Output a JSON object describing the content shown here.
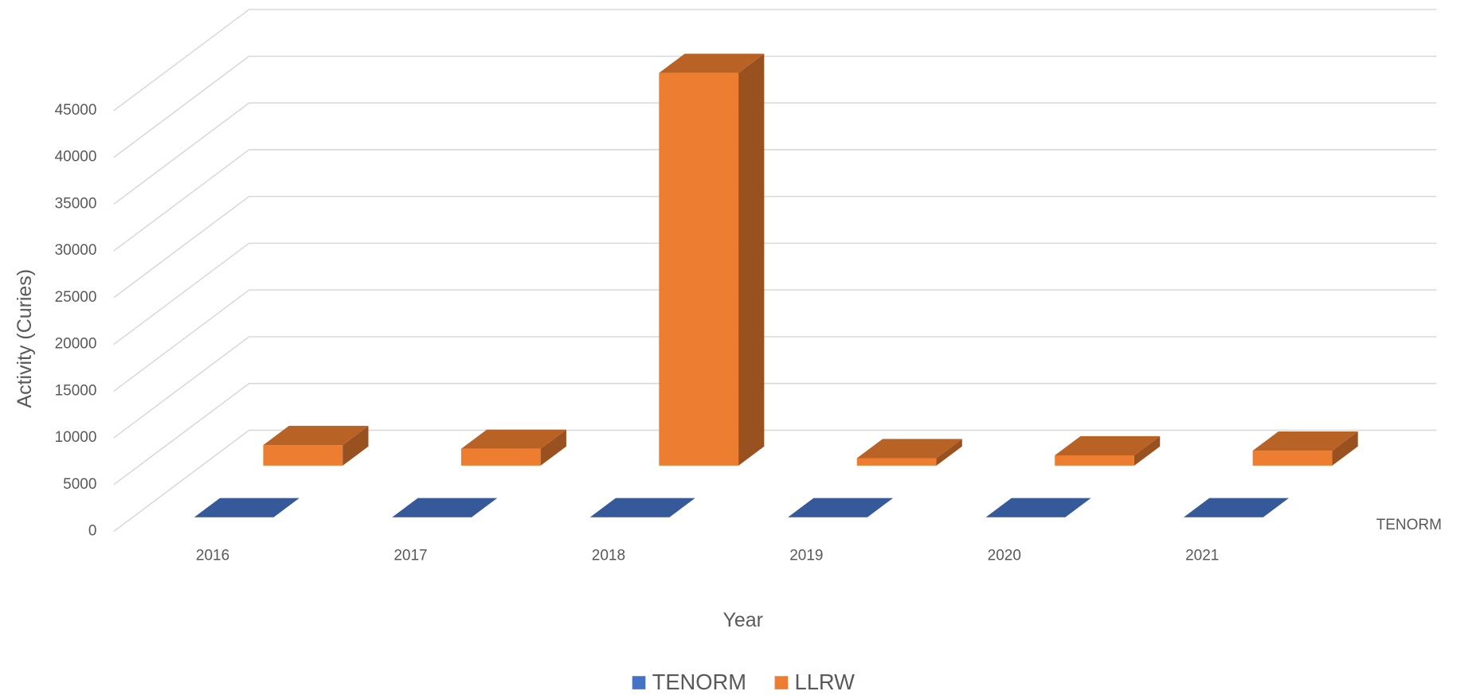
{
  "chart_data": {
    "type": "bar3d",
    "x_label": "Year",
    "y_label": "Activity (Curies)",
    "categories": [
      "2016",
      "2017",
      "2018",
      "2019",
      "2020",
      "2021"
    ],
    "series": [
      {
        "name": "TENORM",
        "color": "#4472c4",
        "values": [
          0,
          0,
          0,
          0,
          0,
          0
        ]
      },
      {
        "name": "LLRW",
        "color": "#ed7d31",
        "values": [
          2200,
          1800,
          42000,
          800,
          1100,
          1600
        ]
      }
    ],
    "ylim": [
      0,
      45000
    ],
    "yticks": [
      0,
      5000,
      10000,
      15000,
      20000,
      25000,
      30000,
      35000,
      40000,
      45000
    ],
    "grid": true,
    "legend": "bottom"
  }
}
